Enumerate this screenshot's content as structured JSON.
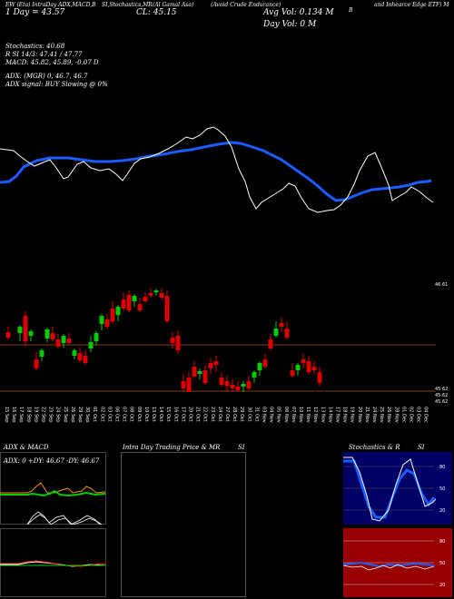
{
  "header": {
    "top_left": "EW (Eta) IntraDay ADX,MACD,B",
    "top_mid": "SI,Stochastics,MR",
    "top_mid2": "(Al Gamal Asa)",
    "top_right": "(Avoid Crude Endurance)",
    "top_right2": "and Inhearce Edge ETF) M",
    "day_label": "1 Day = 43.57",
    "cl_label": "CL: 45.15",
    "avg_vol": "Avg Vol: 0.134  M",
    "day_vol": "Day Vol: 0  M",
    "b_mark": "B"
  },
  "stats": {
    "stochastics": "Stochastics: 40.68",
    "r_line": "R          SI 14/3: 47.41 / 47.77",
    "macd": "MACD: 45.82, 45.89, -0.07 D",
    "adx": "ADX:                    (MGR) 0, 46.7, 46.7",
    "adx_signal": "ADX  signal:                   BUY Slowing @ 0%"
  },
  "price_panel": {
    "right_label_top": "46.61",
    "right_label_1": "45.62",
    "right_label_2": "45.62",
    "right_label_3": "45.62"
  },
  "dates": [
    "15 Sep",
    "16 Sep",
    "17 Sep",
    "18 Sep",
    "19 Sep",
    "22 Sep",
    "23 Sep",
    "24 Sep",
    "25 Sep",
    "26 Sep",
    "29 Sep",
    "30 Sep",
    "01 Oct",
    "02 Oct",
    "03 Oct",
    "06 Oct",
    "07 Oct",
    "08 Oct",
    "09 Oct",
    "10 Oct",
    "13 Oct",
    "14 Oct",
    "15 Oct",
    "16 Oct",
    "17 Oct",
    "20 Oct",
    "21 Oct",
    "22 Oct",
    "23 Oct",
    "24 Oct",
    "27 Oct",
    "28 Oct",
    "29 Oct",
    "30 Oct",
    "31 Oct",
    "03 Nov",
    "04 Nov",
    "05 Nov",
    "06 Nov",
    "07 Nov",
    "10 Nov",
    "11 Nov",
    "12 Nov",
    "13 Nov",
    "14 Nov",
    "17 Nov",
    "18 Nov",
    "19 Nov",
    "20 Nov",
    "21 Nov",
    "24 Nov",
    "25 Nov",
    "26 Nov",
    "28 Nov",
    "01 Dec",
    "02 Dec",
    "03 Dec",
    "04 Dec",
    "05 Dec",
    "08 Dec"
  ],
  "panels": {
    "adx_title": "ADX  & MACD",
    "adx_values": "ADX: 0   +DY: 46.67  -DY: 46.67",
    "mr_title": "Intra Day Trading Price  & MR",
    "mr_si": "SI",
    "stoch_title": "Stochastics & R",
    "stoch_si": "SI",
    "stoch_ticks": [
      "80",
      "50",
      "20"
    ],
    "rsi_ticks": [
      "80",
      "50",
      "20"
    ]
  },
  "colors": {
    "up": "#00cc00",
    "down": "#dd0000",
    "ma": "#1a5cff",
    "price_line": "#ffffff",
    "stoch_bg": "#000066",
    "rsi_bg": "#990000",
    "level_line": "#8a3a1a"
  }
}
